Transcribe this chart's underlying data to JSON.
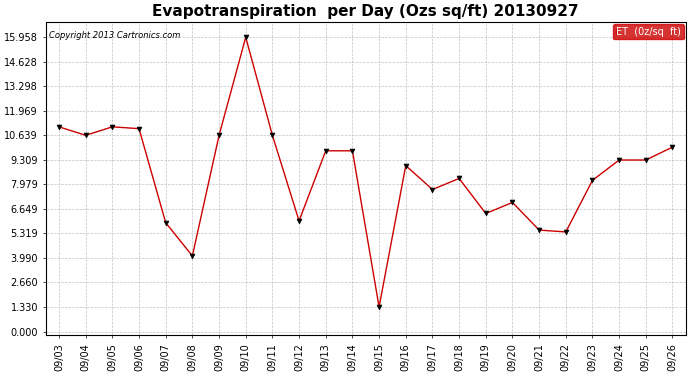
{
  "title": "Evapotranspiration  per Day (Ozs sq/ft) 20130927",
  "copyright": "Copyright 2013 Cartronics.com",
  "legend_label": "ET  (0z/sq  ft)",
  "dates": [
    "09/03",
    "09/04",
    "09/05",
    "09/06",
    "09/07",
    "09/08",
    "09/09",
    "09/10",
    "09/11",
    "09/12",
    "09/13",
    "09/14",
    "09/15",
    "09/16",
    "09/17",
    "09/18",
    "09/19",
    "09/20",
    "09/21",
    "09/22",
    "09/23",
    "09/24",
    "09/25",
    "09/26"
  ],
  "values": [
    11.1,
    10.639,
    11.1,
    11.0,
    5.9,
    4.1,
    10.639,
    15.958,
    10.639,
    6.0,
    9.8,
    9.8,
    1.33,
    9.0,
    7.7,
    8.3,
    6.4,
    7.0,
    5.5,
    5.4,
    8.2,
    9.3,
    9.3,
    10.0
  ],
  "yticks": [
    0.0,
    1.33,
    2.66,
    3.99,
    5.319,
    6.649,
    7.979,
    9.309,
    10.639,
    11.969,
    13.298,
    14.628,
    15.958
  ],
  "line_color": "#cc0000",
  "marker_color": "#000000",
  "bg_color": "#ffffff",
  "grid_color": "#bbbbbb",
  "title_fontsize": 11,
  "copyright_fontsize": 6,
  "tick_fontsize": 7,
  "legend_bg": "#cc0000",
  "legend_text_color": "#ffffff",
  "legend_fontsize": 7
}
